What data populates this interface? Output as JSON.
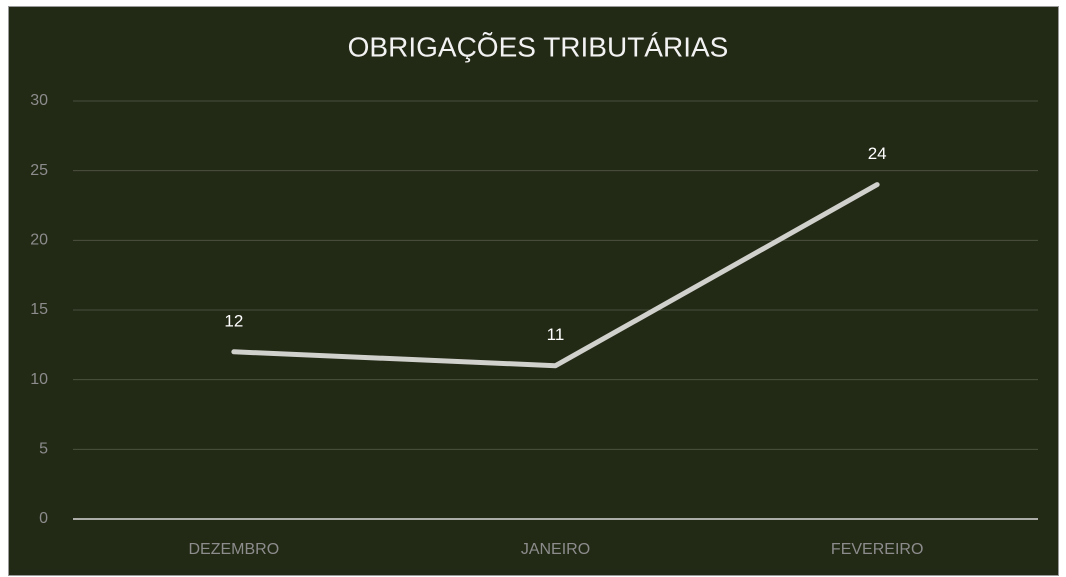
{
  "chart_data": {
    "type": "line",
    "title": "OBRIGAÇÕES TRIBUTÁRIAS",
    "categories": [
      "DEZEMBRO",
      "JANEIRO",
      "FEVEREIRO"
    ],
    "values": [
      12,
      11,
      24
    ],
    "color": "#d0d0cc",
    "ylim": [
      0,
      30
    ],
    "yticks": [
      0,
      5,
      10,
      15,
      20,
      25,
      30
    ],
    "grid": true
  }
}
